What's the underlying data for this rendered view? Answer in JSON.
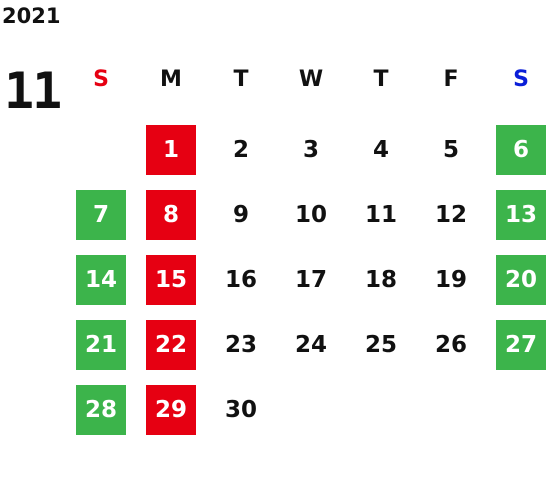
{
  "year": "2021",
  "month": "11",
  "weekdays": [
    "S",
    "M",
    "T",
    "W",
    "T",
    "F",
    "S"
  ],
  "weeks": [
    [
      null,
      1,
      2,
      3,
      4,
      5,
      6
    ],
    [
      7,
      8,
      9,
      10,
      11,
      12,
      13
    ],
    [
      14,
      15,
      16,
      17,
      18,
      19,
      20
    ],
    [
      21,
      22,
      23,
      24,
      25,
      26,
      27
    ],
    [
      28,
      29,
      30,
      null,
      null,
      null,
      null
    ]
  ]
}
